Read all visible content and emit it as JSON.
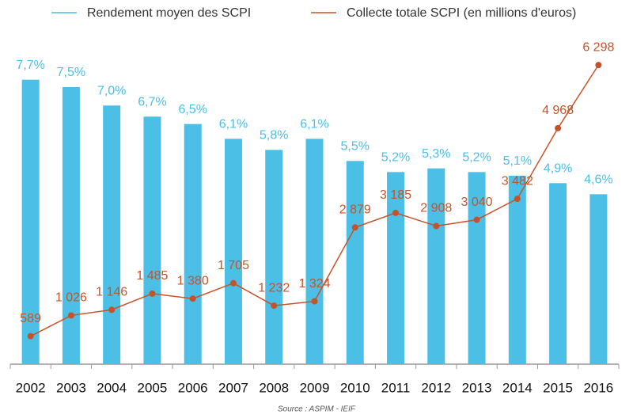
{
  "chart_data": {
    "type": "bar-line",
    "categories": [
      "2002",
      "2003",
      "2004",
      "2005",
      "2006",
      "2007",
      "2008",
      "2009",
      "2010",
      "2011",
      "2012",
      "2013",
      "2014",
      "2015",
      "2016"
    ],
    "series": [
      {
        "name": "Rendement moyen des SCPI",
        "type": "bar",
        "color": "#4bbfe6",
        "values": [
          7.7,
          7.5,
          7.0,
          6.7,
          6.5,
          6.1,
          5.8,
          6.1,
          5.5,
          5.2,
          5.3,
          5.2,
          5.1,
          4.9,
          4.6
        ],
        "value_labels": [
          "7,7%",
          "7,5%",
          "7,0%",
          "6,7%",
          "6,5%",
          "6,1%",
          "5,8%",
          "6,1%",
          "5,5%",
          "5,2%",
          "5,3%",
          "5,2%",
          "5,1%",
          "4,9%",
          "4,6%"
        ]
      },
      {
        "name": "Collecte totale SCPI (en millions d'euros)",
        "type": "line",
        "axis": "y2",
        "color": "#c5532a",
        "values": [
          589,
          1026,
          1146,
          1485,
          1380,
          1705,
          1232,
          1324,
          2879,
          3185,
          2908,
          3040,
          3482,
          4968,
          6298
        ],
        "value_labels": [
          "589",
          "1 026",
          "1 146",
          "1 485",
          "1 380",
          "1 705",
          "1 232",
          "1 324",
          "2 879",
          "3 185",
          "2 908",
          "3 040",
          "3 482",
          "4 968",
          "6 298"
        ]
      }
    ],
    "ylim": [
      0,
      9
    ],
    "y2lim": [
      0,
      7000
    ],
    "source": "Source : ASPIM - IEIF"
  }
}
